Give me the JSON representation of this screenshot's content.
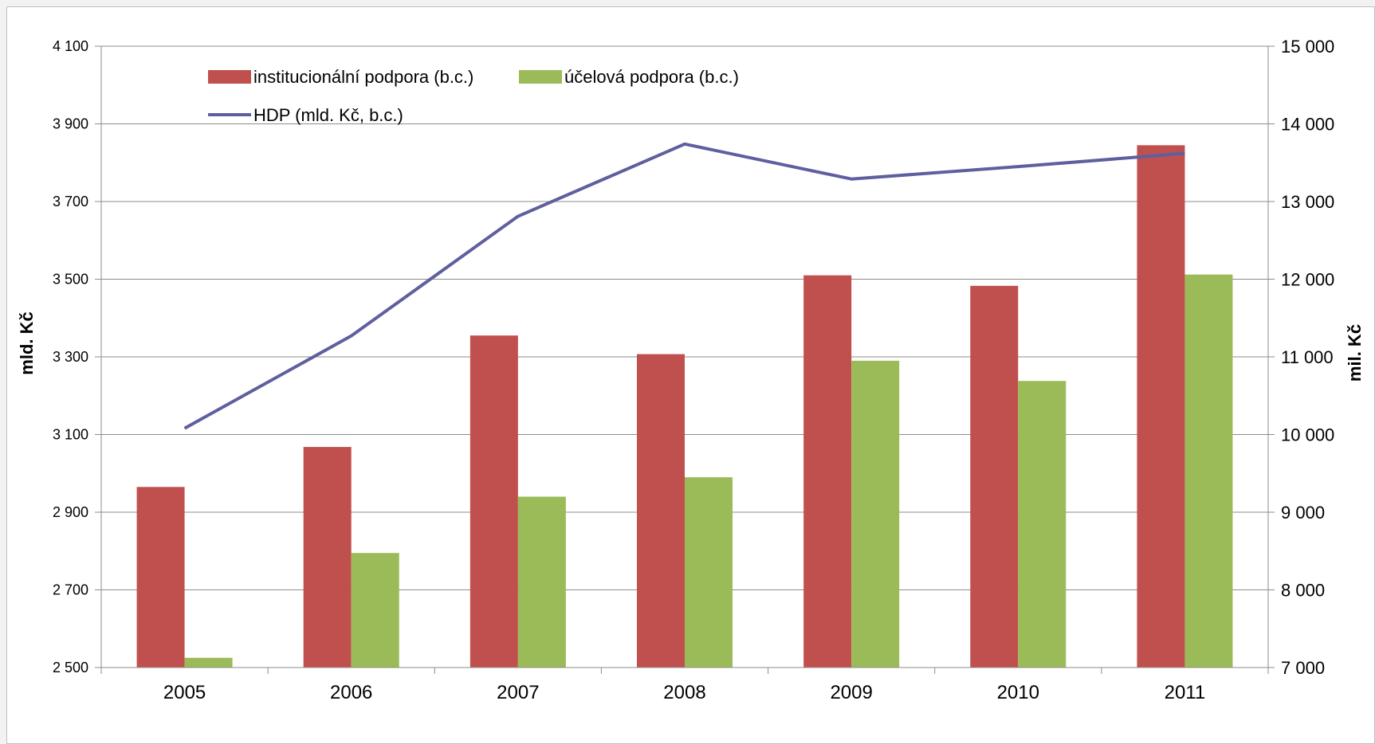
{
  "chart_data": {
    "type": "bar",
    "categories": [
      "2005",
      "2006",
      "2007",
      "2008",
      "2009",
      "2010",
      "2011"
    ],
    "series": [
      {
        "name": "institucionální podpora (b.c.)",
        "kind": "bar",
        "axis": "left",
        "color": "#c0504d",
        "values": [
          2965,
          3068,
          3355,
          3307,
          3510,
          3483,
          3845
        ]
      },
      {
        "name": "účelová podpora (b.c.)",
        "kind": "bar",
        "axis": "left",
        "color": "#9bbb59",
        "values": [
          2525,
          2795,
          2940,
          2990,
          3290,
          3238,
          3512
        ]
      },
      {
        "name": "HDP (mld. Kč, b.c.)",
        "kind": "line",
        "axis": "right",
        "color": "#5f5f9f",
        "values": [
          10080,
          11270,
          12810,
          13740,
          13290,
          13450,
          13620
        ]
      }
    ],
    "ylabel_left": "mld. Kč",
    "ylabel_right": "mil. Kč",
    "ylim_left": [
      2500,
      4100
    ],
    "ylim_right": [
      7000,
      15000
    ],
    "yticks_left": [
      "2 500",
      "2 700",
      "2 900",
      "3 100",
      "3 300",
      "3 500",
      "3 700",
      "3 900",
      "4 100"
    ],
    "yticks_right": [
      "7 000",
      "8 000",
      "9 000",
      "10 000",
      "11 000",
      "12 000",
      "13 000",
      "14 000",
      "15 000"
    ],
    "grid": true,
    "legend_position": "top-left"
  }
}
